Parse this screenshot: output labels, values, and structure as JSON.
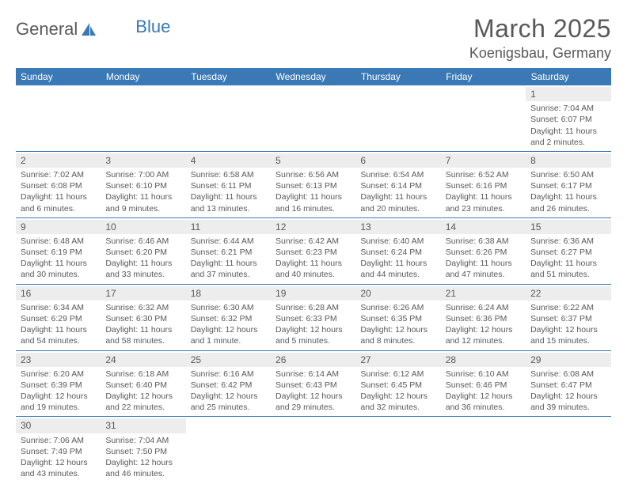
{
  "brand": {
    "part1": "General",
    "part2": "Blue"
  },
  "title": "March 2025",
  "location": "Koenigsbau, Germany",
  "colors": {
    "header_bg": "#3a78b6",
    "header_text": "#ffffff",
    "body_text": "#59595b",
    "daynum_bg": "#ededed",
    "grid_line": "#3a78b6"
  },
  "typography": {
    "title_fontsize": 32,
    "location_fontsize": 18,
    "dayheader_fontsize": 12,
    "cell_fontsize": 10.5
  },
  "day_headers": [
    "Sunday",
    "Monday",
    "Tuesday",
    "Wednesday",
    "Thursday",
    "Friday",
    "Saturday"
  ],
  "weeks": [
    [
      null,
      null,
      null,
      null,
      null,
      null,
      {
        "n": "1",
        "sunrise": "Sunrise: 7:04 AM",
        "sunset": "Sunset: 6:07 PM",
        "daylight": "Daylight: 11 hours and 2 minutes."
      }
    ],
    [
      {
        "n": "2",
        "sunrise": "Sunrise: 7:02 AM",
        "sunset": "Sunset: 6:08 PM",
        "daylight": "Daylight: 11 hours and 6 minutes."
      },
      {
        "n": "3",
        "sunrise": "Sunrise: 7:00 AM",
        "sunset": "Sunset: 6:10 PM",
        "daylight": "Daylight: 11 hours and 9 minutes."
      },
      {
        "n": "4",
        "sunrise": "Sunrise: 6:58 AM",
        "sunset": "Sunset: 6:11 PM",
        "daylight": "Daylight: 11 hours and 13 minutes."
      },
      {
        "n": "5",
        "sunrise": "Sunrise: 6:56 AM",
        "sunset": "Sunset: 6:13 PM",
        "daylight": "Daylight: 11 hours and 16 minutes."
      },
      {
        "n": "6",
        "sunrise": "Sunrise: 6:54 AM",
        "sunset": "Sunset: 6:14 PM",
        "daylight": "Daylight: 11 hours and 20 minutes."
      },
      {
        "n": "7",
        "sunrise": "Sunrise: 6:52 AM",
        "sunset": "Sunset: 6:16 PM",
        "daylight": "Daylight: 11 hours and 23 minutes."
      },
      {
        "n": "8",
        "sunrise": "Sunrise: 6:50 AM",
        "sunset": "Sunset: 6:17 PM",
        "daylight": "Daylight: 11 hours and 26 minutes."
      }
    ],
    [
      {
        "n": "9",
        "sunrise": "Sunrise: 6:48 AM",
        "sunset": "Sunset: 6:19 PM",
        "daylight": "Daylight: 11 hours and 30 minutes."
      },
      {
        "n": "10",
        "sunrise": "Sunrise: 6:46 AM",
        "sunset": "Sunset: 6:20 PM",
        "daylight": "Daylight: 11 hours and 33 minutes."
      },
      {
        "n": "11",
        "sunrise": "Sunrise: 6:44 AM",
        "sunset": "Sunset: 6:21 PM",
        "daylight": "Daylight: 11 hours and 37 minutes."
      },
      {
        "n": "12",
        "sunrise": "Sunrise: 6:42 AM",
        "sunset": "Sunset: 6:23 PM",
        "daylight": "Daylight: 11 hours and 40 minutes."
      },
      {
        "n": "13",
        "sunrise": "Sunrise: 6:40 AM",
        "sunset": "Sunset: 6:24 PM",
        "daylight": "Daylight: 11 hours and 44 minutes."
      },
      {
        "n": "14",
        "sunrise": "Sunrise: 6:38 AM",
        "sunset": "Sunset: 6:26 PM",
        "daylight": "Daylight: 11 hours and 47 minutes."
      },
      {
        "n": "15",
        "sunrise": "Sunrise: 6:36 AM",
        "sunset": "Sunset: 6:27 PM",
        "daylight": "Daylight: 11 hours and 51 minutes."
      }
    ],
    [
      {
        "n": "16",
        "sunrise": "Sunrise: 6:34 AM",
        "sunset": "Sunset: 6:29 PM",
        "daylight": "Daylight: 11 hours and 54 minutes."
      },
      {
        "n": "17",
        "sunrise": "Sunrise: 6:32 AM",
        "sunset": "Sunset: 6:30 PM",
        "daylight": "Daylight: 11 hours and 58 minutes."
      },
      {
        "n": "18",
        "sunrise": "Sunrise: 6:30 AM",
        "sunset": "Sunset: 6:32 PM",
        "daylight": "Daylight: 12 hours and 1 minute."
      },
      {
        "n": "19",
        "sunrise": "Sunrise: 6:28 AM",
        "sunset": "Sunset: 6:33 PM",
        "daylight": "Daylight: 12 hours and 5 minutes."
      },
      {
        "n": "20",
        "sunrise": "Sunrise: 6:26 AM",
        "sunset": "Sunset: 6:35 PM",
        "daylight": "Daylight: 12 hours and 8 minutes."
      },
      {
        "n": "21",
        "sunrise": "Sunrise: 6:24 AM",
        "sunset": "Sunset: 6:36 PM",
        "daylight": "Daylight: 12 hours and 12 minutes."
      },
      {
        "n": "22",
        "sunrise": "Sunrise: 6:22 AM",
        "sunset": "Sunset: 6:37 PM",
        "daylight": "Daylight: 12 hours and 15 minutes."
      }
    ],
    [
      {
        "n": "23",
        "sunrise": "Sunrise: 6:20 AM",
        "sunset": "Sunset: 6:39 PM",
        "daylight": "Daylight: 12 hours and 19 minutes."
      },
      {
        "n": "24",
        "sunrise": "Sunrise: 6:18 AM",
        "sunset": "Sunset: 6:40 PM",
        "daylight": "Daylight: 12 hours and 22 minutes."
      },
      {
        "n": "25",
        "sunrise": "Sunrise: 6:16 AM",
        "sunset": "Sunset: 6:42 PM",
        "daylight": "Daylight: 12 hours and 25 minutes."
      },
      {
        "n": "26",
        "sunrise": "Sunrise: 6:14 AM",
        "sunset": "Sunset: 6:43 PM",
        "daylight": "Daylight: 12 hours and 29 minutes."
      },
      {
        "n": "27",
        "sunrise": "Sunrise: 6:12 AM",
        "sunset": "Sunset: 6:45 PM",
        "daylight": "Daylight: 12 hours and 32 minutes."
      },
      {
        "n": "28",
        "sunrise": "Sunrise: 6:10 AM",
        "sunset": "Sunset: 6:46 PM",
        "daylight": "Daylight: 12 hours and 36 minutes."
      },
      {
        "n": "29",
        "sunrise": "Sunrise: 6:08 AM",
        "sunset": "Sunset: 6:47 PM",
        "daylight": "Daylight: 12 hours and 39 minutes."
      }
    ],
    [
      {
        "n": "30",
        "sunrise": "Sunrise: 7:06 AM",
        "sunset": "Sunset: 7:49 PM",
        "daylight": "Daylight: 12 hours and 43 minutes."
      },
      {
        "n": "31",
        "sunrise": "Sunrise: 7:04 AM",
        "sunset": "Sunset: 7:50 PM",
        "daylight": "Daylight: 12 hours and 46 minutes."
      },
      null,
      null,
      null,
      null,
      null
    ]
  ]
}
